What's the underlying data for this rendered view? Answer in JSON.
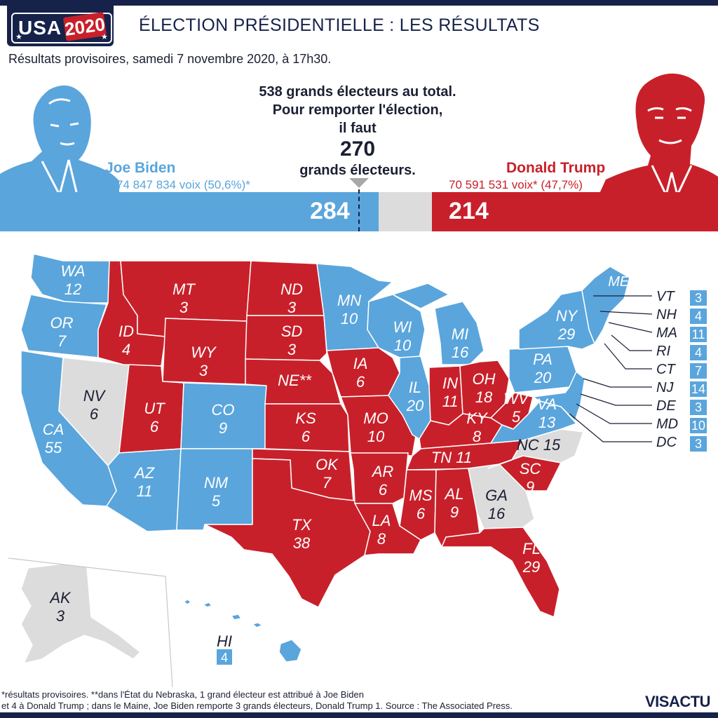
{
  "logo": {
    "country": "USA",
    "year": "2020"
  },
  "title": "ÉLECTION PRÉSIDENTIELLE : LES RÉSULTATS",
  "subtitle": "Résultats provisoires, samedi 7 novembre 2020, à 17h30.",
  "center_note": {
    "line1": "538 grands électeurs au total.",
    "line2": "Pour remporter l'élection,",
    "line3": "il faut",
    "threshold": "270",
    "line4": "grands électeurs."
  },
  "candidates": {
    "biden": {
      "name": "Joe Biden",
      "votes": "74 847 834 voix (50,6%)*",
      "electors": "284",
      "color": "#5aa5dc"
    },
    "trump": {
      "name": "Donald Trump",
      "votes": "70 591 531 voix* (47,7%)",
      "electors": "214",
      "color": "#c8202a"
    }
  },
  "colors": {
    "dem": "#5aa5dc",
    "rep": "#c8202a",
    "undecided": "#dcdcdc",
    "navy": "#16224a"
  },
  "map": {
    "states": [
      {
        "code": "WA",
        "ev": "12",
        "party": "dem"
      },
      {
        "code": "OR",
        "ev": "7",
        "party": "dem"
      },
      {
        "code": "CA",
        "ev": "55",
        "party": "dem"
      },
      {
        "code": "NV",
        "ev": "6",
        "party": "undecided"
      },
      {
        "code": "ID",
        "ev": "4",
        "party": "rep"
      },
      {
        "code": "MT",
        "ev": "3",
        "party": "rep"
      },
      {
        "code": "WY",
        "ev": "3",
        "party": "rep"
      },
      {
        "code": "UT",
        "ev": "6",
        "party": "rep"
      },
      {
        "code": "CO",
        "ev": "9",
        "party": "dem"
      },
      {
        "code": "AZ",
        "ev": "11",
        "party": "dem"
      },
      {
        "code": "NM",
        "ev": "5",
        "party": "dem"
      },
      {
        "code": "ND",
        "ev": "3",
        "party": "rep"
      },
      {
        "code": "SD",
        "ev": "3",
        "party": "rep"
      },
      {
        "code": "NE**",
        "ev": "",
        "party": "rep"
      },
      {
        "code": "KS",
        "ev": "6",
        "party": "rep"
      },
      {
        "code": "OK",
        "ev": "7",
        "party": "rep"
      },
      {
        "code": "TX",
        "ev": "38",
        "party": "rep"
      },
      {
        "code": "MN",
        "ev": "10",
        "party": "dem"
      },
      {
        "code": "IA",
        "ev": "6",
        "party": "rep"
      },
      {
        "code": "MO",
        "ev": "10",
        "party": "rep"
      },
      {
        "code": "AR",
        "ev": "6",
        "party": "rep"
      },
      {
        "code": "LA",
        "ev": "8",
        "party": "rep"
      },
      {
        "code": "WI",
        "ev": "10",
        "party": "dem"
      },
      {
        "code": "IL",
        "ev": "20",
        "party": "dem"
      },
      {
        "code": "MI",
        "ev": "16",
        "party": "dem"
      },
      {
        "code": "IN",
        "ev": "11",
        "party": "rep"
      },
      {
        "code": "OH",
        "ev": "18",
        "party": "rep"
      },
      {
        "code": "KY",
        "ev": "8",
        "party": "rep"
      },
      {
        "code": "TN",
        "ev": "11",
        "party": "rep"
      },
      {
        "code": "MS",
        "ev": "6",
        "party": "rep"
      },
      {
        "code": "AL",
        "ev": "9",
        "party": "rep"
      },
      {
        "code": "GA",
        "ev": "16",
        "party": "undecided"
      },
      {
        "code": "FL",
        "ev": "29",
        "party": "rep"
      },
      {
        "code": "SC",
        "ev": "9",
        "party": "rep"
      },
      {
        "code": "NC",
        "ev": "15",
        "party": "undecided"
      },
      {
        "code": "WV",
        "ev": "5",
        "party": "rep"
      },
      {
        "code": "VA",
        "ev": "13",
        "party": "dem"
      },
      {
        "code": "PA",
        "ev": "20",
        "party": "dem"
      },
      {
        "code": "NY",
        "ev": "29",
        "party": "dem"
      },
      {
        "code": "ME**",
        "ev": "",
        "party": "dem"
      },
      {
        "code": "AK",
        "ev": "3",
        "party": "undecided"
      },
      {
        "code": "HI",
        "ev": "4",
        "party": "dem"
      }
    ],
    "northeast_callouts": [
      {
        "code": "VT",
        "ev": "3"
      },
      {
        "code": "NH",
        "ev": "4"
      },
      {
        "code": "MA",
        "ev": "11"
      },
      {
        "code": "RI",
        "ev": "4"
      },
      {
        "code": "CT",
        "ev": "7"
      },
      {
        "code": "NJ",
        "ev": "14"
      },
      {
        "code": "DE",
        "ev": "3"
      },
      {
        "code": "MD",
        "ev": "10"
      },
      {
        "code": "DC",
        "ev": "3"
      }
    ]
  },
  "footnote": {
    "line1": "*résultats provisoires. **dans l'État du Nebraska, 1 grand électeur est attribué à Joe Biden",
    "line2": "et 4 à Donald Trump ; dans le Maine, Joe Biden remporte 3 grands électeurs, Donald Trump 1.  Source : The Associated Press."
  },
  "brand": "VISACTU"
}
